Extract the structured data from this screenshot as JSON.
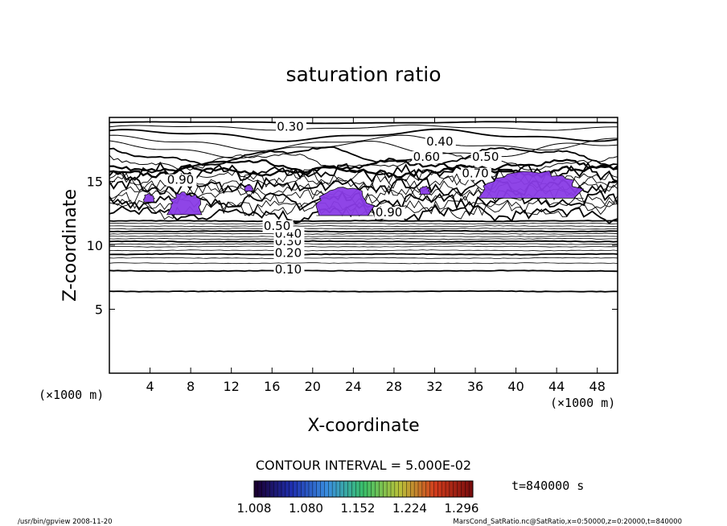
{
  "chart_data": {
    "type": "contour",
    "title": "saturation ratio",
    "xlabel": "X-coordinate",
    "ylabel": "Z-coordinate",
    "x_unit": "(×1000 m)",
    "y_unit": "(×1000 m)",
    "xlim": [
      0,
      50
    ],
    "ylim": [
      0,
      20
    ],
    "x_ticks": [
      "4",
      "8",
      "12",
      "16",
      "20",
      "24",
      "28",
      "32",
      "36",
      "40",
      "44",
      "48"
    ],
    "y_ticks": [
      "5",
      "10",
      "15"
    ],
    "contour_labels": [
      "0.30",
      "0.40",
      "0.60",
      "0.50",
      "0.70",
      "0.90",
      "0.90",
      "0.10",
      "0.20",
      "0.30",
      "0.40",
      "0.50"
    ],
    "contour_interval": "CONTOUR INTERVAL = 5.000E-02",
    "colorbar": {
      "tick_labels": [
        "1.008",
        "1.080",
        "1.152",
        "1.224",
        "1.296"
      ],
      "range": [
        1.008,
        1.296
      ],
      "colors": [
        "#1a0033",
        "#1f2fae",
        "#3a8fe0",
        "#39c06a",
        "#b9c23a",
        "#d23c1c",
        "#7a0d0d"
      ]
    },
    "time_label": "t=840000 s",
    "supersaturated_color": "#8a3ce6"
  },
  "footer": {
    "left": "/usr/bin/gpview   2008-11-20",
    "right": "MarsCond_SatRatio.nc@SatRatio,x=0:50000,z=0:20000,t=840000"
  }
}
